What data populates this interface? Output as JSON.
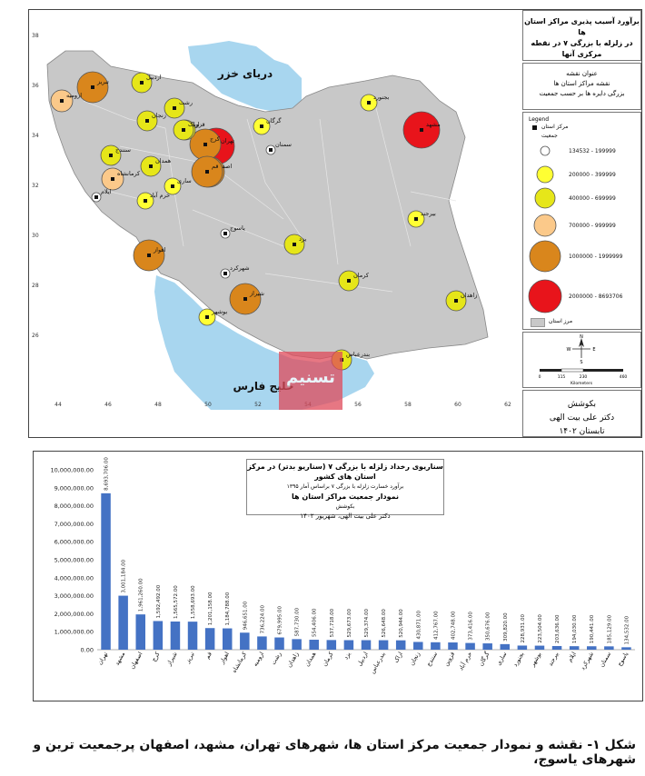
{
  "map": {
    "title_line1": "برآورد آسیب پذیری مراکز استان ها",
    "title_line2": "در زلزله با بزرگی ۷ در نقطه مرکزی آنها",
    "info_line1": "عنوان نقشه",
    "info_line2": "نقشه مراکز استان ها",
    "info_line3": "بزرگی دایره ها بر حسب جمعیت",
    "sea_north": "دریای خزر",
    "sea_south": "خلیج فارس",
    "legend": {
      "title": "Legend",
      "capital_label": "مرکز استان",
      "population_label": "جمعیت",
      "classes": [
        {
          "label": "134532 - 199999",
          "color": "#ffffff"
        },
        {
          "label": "200000 - 399999",
          "color": "#ffff33"
        },
        {
          "label": "400000 - 699999",
          "color": "#e6e619"
        },
        {
          "label": "700000 - 999999",
          "color": "#fbc98a"
        },
        {
          "label": "1000000 - 1999999",
          "color": "#d9861c"
        },
        {
          "label": "2000000 - 8693706",
          "color": "#e8141b"
        }
      ],
      "province_label": "مرز استان"
    },
    "scale_label": "Kilometers",
    "scale_ticks": [
      "0",
      "115",
      "230",
      "460"
    ],
    "north_n": "N",
    "north_w": "W",
    "north_e": "E",
    "north_s": "S",
    "credit_line1": "بکوشش",
    "credit_line2": "دکتر علی بیت الهی",
    "credit_line3": "تابستان ۱۴۰۲",
    "x_ticks": [
      "44",
      "46",
      "48",
      "50",
      "52",
      "54",
      "56",
      "58",
      "60",
      "62"
    ],
    "y_ticks": [
      "38",
      "36",
      "34",
      "32",
      "30",
      "28",
      "26"
    ],
    "cities": [
      {
        "name": "تهران",
        "cls": 5
      },
      {
        "name": "مشهد",
        "cls": 5
      },
      {
        "name": "تبریز",
        "cls": 4
      },
      {
        "name": "اصفهان",
        "cls": 4
      },
      {
        "name": "کرج",
        "cls": 4
      },
      {
        "name": "قم",
        "cls": 4
      },
      {
        "name": "شیراز",
        "cls": 4
      },
      {
        "name": "اهواز",
        "cls": 4
      },
      {
        "name": "ارومیه",
        "cls": 3
      },
      {
        "name": "کرمانشاه",
        "cls": 3
      },
      {
        "name": "رشت",
        "cls": 2
      },
      {
        "name": "زاهدان",
        "cls": 2
      },
      {
        "name": "اردبیل",
        "cls": 2
      },
      {
        "name": "بندرعباس",
        "cls": 2
      },
      {
        "name": "همدان",
        "cls": 2
      },
      {
        "name": "یزد",
        "cls": 2
      },
      {
        "name": "کرمان",
        "cls": 2
      },
      {
        "name": "سنندج",
        "cls": 2
      },
      {
        "name": "زنجان",
        "cls": 2
      },
      {
        "name": "خرم آباد",
        "cls": 1
      },
      {
        "name": "قزوین",
        "cls": 2
      },
      {
        "name": "ساری",
        "cls": 1
      },
      {
        "name": "گرگان",
        "cls": 1
      },
      {
        "name": "اراک",
        "cls": 2
      },
      {
        "name": "بجنورد",
        "cls": 1
      },
      {
        "name": "بوشهر",
        "cls": 1
      },
      {
        "name": "بیرجند",
        "cls": 1
      },
      {
        "name": "ایلام",
        "cls": 0
      },
      {
        "name": "شهرکرد",
        "cls": 0
      },
      {
        "name": "سمنان",
        "cls": 0
      },
      {
        "name": "یاسوج",
        "cls": 0
      }
    ]
  },
  "chart_data": {
    "type": "bar",
    "title": "سناریوی رخداد زلزله با بزرگی ۷ (سناریو بدتر) در مرکز استان های کشور",
    "subtitle": "برآورد خسارت زلزله با بزرگی ۷ براساس آمار ۱۳۹۵",
    "heading": "نمودار جمعیت مراکز استان ها",
    "by_label": "بکوشش",
    "author": "دکتر علی بیت الهی، شهریور ۱۴۰۲",
    "color": "#4472c4",
    "ylim": [
      0,
      10000000
    ],
    "y_ticks": [
      "0.00",
      "1,000,000.00",
      "2,000,000.00",
      "3,000,000.00",
      "4,000,000.00",
      "5,000,000.00",
      "6,000,000.00",
      "7,000,000.00",
      "8,000,000.00",
      "9,000,000.00",
      "10,000,000.00"
    ],
    "categories": [
      "تهران",
      "مشهد",
      "اصفهان",
      "کرج",
      "شیراز",
      "تبریز",
      "قم",
      "اهواز",
      "کرمانشاه",
      "ارومیه",
      "رشت",
      "زاهدان",
      "همدان",
      "کرمان",
      "یزد",
      "اردبیل",
      "بندرعباس",
      "اراک",
      "زنجان",
      "سنندج",
      "قزوین",
      "خرم آباد",
      "گرگان",
      "ساری",
      "بجنورد",
      "بوشهر",
      "بیرجند",
      "ایلام",
      "شهرکرد",
      "سمنان",
      "یاسوج"
    ],
    "values": [
      8693706,
      3001184,
      1961260,
      1592492,
      1565572,
      1558693,
      1201158,
      1184788,
      946651,
      736224,
      679995,
      587730,
      554406,
      537718,
      529673,
      529374,
      526648,
      520944,
      430871,
      412767,
      402748,
      373416,
      350676,
      309820,
      228931,
      223504,
      203636,
      194030,
      190441,
      185129,
      134532
    ],
    "labels": [
      "8,693,706.00",
      "3,001,184.00",
      "1,961,260.00",
      "1,592,492.00",
      "1,565,572.00",
      "1,558,693.00",
      "1,201,158.00",
      "1,184,788.00",
      "946,651.00",
      "736,224.00",
      "679,995.00",
      "587,730.00",
      "554,406.00",
      "537,718.00",
      "529,673.00",
      "529,374.00",
      "526,648.00",
      "520,944.00",
      "430,871.00",
      "412,767.00",
      "402,748.00",
      "373,416.00",
      "350,676.00",
      "309,820.00",
      "228,931.00",
      "223,504.00",
      "203,636.00",
      "194,030.00",
      "190,441.00",
      "185,129.00",
      "134,532.00"
    ]
  },
  "caption": "شکل ۱- نقشه و نمودار جمعیت مرکز استان ها، شهرهای تهران، مشهد، اصفهان پرجمعیت ترین و شهرهای یاسوج،"
}
